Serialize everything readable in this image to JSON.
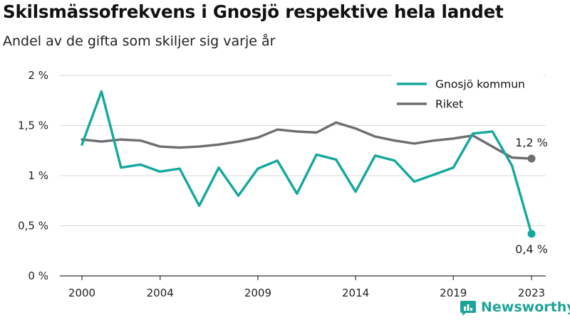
{
  "title": "Skilsmässofrekvens i Gnosjö respektive hela landet",
  "subtitle": "Andel av de gifta som skiljer sig varje år",
  "brand": {
    "name": "Newsworthy",
    "icon": "newsworthy-logo-icon"
  },
  "colors": {
    "gnosjo": "#14a89c",
    "riket": "#6f6c72",
    "grid": "#d9d9d9",
    "axis": "#333333",
    "brand": "#1fa398"
  },
  "chart_data": {
    "type": "line",
    "title": "Skilsmässofrekvens i Gnosjö respektive hela landet",
    "subtitle": "Andel av de gifta som skiljer sig varje år",
    "xlabel": "",
    "ylabel": "",
    "xlim": [
      2000,
      2023
    ],
    "ylim": [
      0,
      2
    ],
    "x_ticks": [
      2000,
      2004,
      2009,
      2014,
      2019,
      2023
    ],
    "x_tick_labels": [
      "2000",
      "2004",
      "2009",
      "2014",
      "2019",
      "2023"
    ],
    "y_ticks": [
      0,
      0.5,
      1,
      1.5,
      2
    ],
    "y_tick_labels": [
      "0 %",
      "0,5 %",
      "1 %",
      "1,5 %",
      "2 %"
    ],
    "grid": true,
    "legend_position": "top-right",
    "x": [
      2000,
      2001,
      2002,
      2003,
      2004,
      2005,
      2006,
      2007,
      2008,
      2009,
      2010,
      2011,
      2012,
      2013,
      2014,
      2015,
      2016,
      2017,
      2018,
      2019,
      2020,
      2021,
      2022,
      2023
    ],
    "series": [
      {
        "name": "Gnosjö kommun",
        "color": "#14a89c",
        "values": [
          1.31,
          1.84,
          1.08,
          1.11,
          1.04,
          1.07,
          0.7,
          1.08,
          0.8,
          1.07,
          1.15,
          0.82,
          1.21,
          1.16,
          0.84,
          1.2,
          1.15,
          0.94,
          1.01,
          1.08,
          1.42,
          1.44,
          1.1,
          0.42
        ],
        "end_label": "0,4 %"
      },
      {
        "name": "Riket",
        "color": "#6f6c72",
        "values": [
          1.36,
          1.34,
          1.36,
          1.35,
          1.29,
          1.28,
          1.29,
          1.31,
          1.34,
          1.38,
          1.46,
          1.44,
          1.43,
          1.53,
          1.47,
          1.39,
          1.35,
          1.32,
          1.35,
          1.37,
          1.4,
          1.29,
          1.18,
          1.17
        ],
        "end_label": "1,2 %"
      }
    ]
  }
}
